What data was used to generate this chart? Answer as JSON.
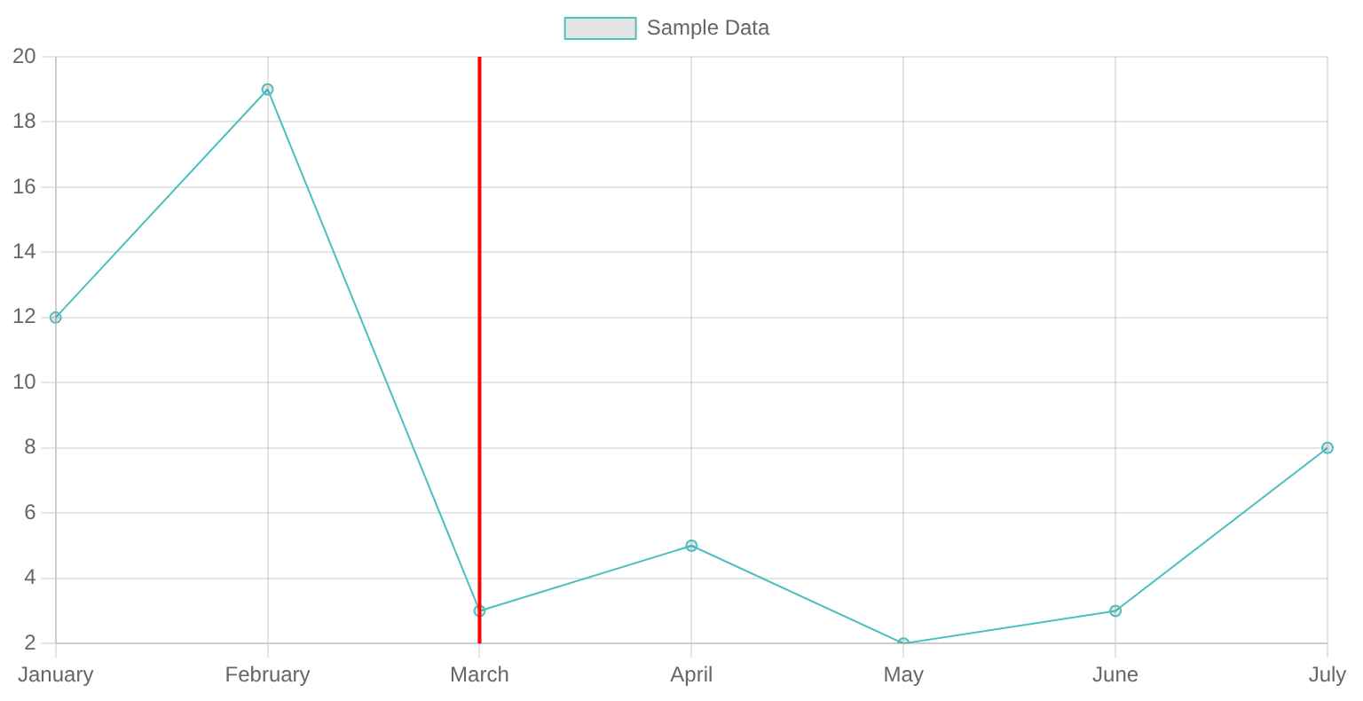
{
  "chart_data": {
    "type": "line",
    "categories": [
      "January",
      "February",
      "March",
      "April",
      "May",
      "June",
      "July"
    ],
    "series": [
      {
        "name": "Sample Data",
        "color": "#4bc0c0",
        "values": [
          12,
          19,
          3,
          5,
          2,
          3,
          8
        ]
      }
    ],
    "ylim": [
      2,
      20
    ],
    "yticks": [
      2,
      4,
      6,
      8,
      10,
      12,
      14,
      16,
      18,
      20
    ],
    "grid": true,
    "legend": "top",
    "marker": "circle",
    "line_style": "solid",
    "ref_lines": [
      {
        "axis": "x",
        "value": "March",
        "color": "#ff0000"
      }
    ]
  }
}
